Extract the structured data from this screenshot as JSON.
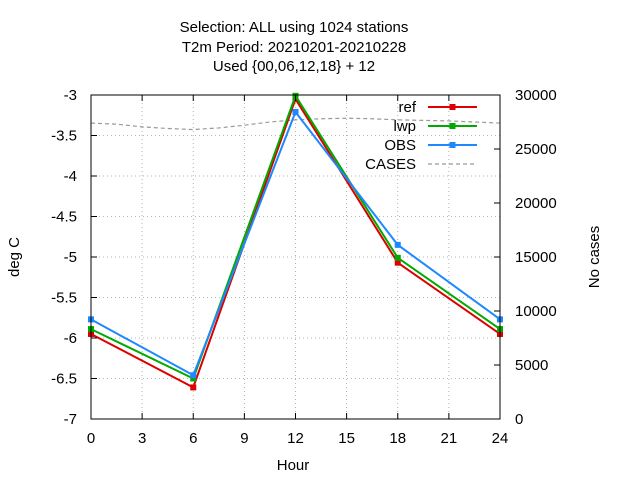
{
  "chart_data": {
    "type": "line",
    "title": [
      "Selection: ALL using  1024 stations",
      "T2m   Period: 20210201-20210228",
      "Used {00,06,12,18} + 12"
    ],
    "xlabel": "Hour",
    "ylabel": "deg C",
    "y2label": "No cases",
    "x": [
      0,
      6,
      12,
      18,
      24
    ],
    "xlim": [
      0,
      24
    ],
    "xticks": [
      "0",
      "3",
      "6",
      "9",
      "12",
      "15",
      "18",
      "21",
      "24"
    ],
    "xtick_values": [
      0,
      3,
      6,
      9,
      12,
      15,
      18,
      21,
      24
    ],
    "ylim": [
      -7,
      -3
    ],
    "yticks": [
      "-3",
      "-3.5",
      "-4",
      "-4.5",
      "-5",
      "-5.5",
      "-6",
      "-6.5",
      "-7"
    ],
    "ytick_values": [
      -3,
      -3.5,
      -4,
      -4.5,
      -5,
      -5.5,
      -6,
      -6.5,
      -7
    ],
    "y2lim": [
      0,
      30000
    ],
    "y2ticks": [
      "30000",
      "25000",
      "20000",
      "15000",
      "10000",
      "5000",
      "0"
    ],
    "y2tick_values": [
      30000,
      25000,
      20000,
      15000,
      10000,
      5000,
      0
    ],
    "grid": true,
    "legend_position": "top-right",
    "series": [
      {
        "name": "ref",
        "color": "#dd0000",
        "values": [
          -5.95,
          -6.61,
          -3.05,
          -5.07,
          -5.95
        ],
        "axis": "y1",
        "marker": "square"
      },
      {
        "name": "lwp",
        "color": "#00aa00",
        "values": [
          -5.89,
          -6.5,
          -3.01,
          -5.01,
          -5.89
        ],
        "axis": "y1",
        "marker": "square"
      },
      {
        "name": "OBS",
        "color": "#1e88ff",
        "values": [
          -5.77,
          -6.46,
          -3.21,
          -4.85,
          -5.77
        ],
        "axis": "y1",
        "marker": "square"
      }
    ],
    "cases": {
      "name": "CASES",
      "color": "#999999",
      "axis": "y2",
      "x": [
        0,
        1.5,
        3,
        4.5,
        6,
        7.5,
        9,
        10.5,
        12,
        13.5,
        15,
        16.5,
        18,
        19.5,
        21,
        22.5,
        24
      ],
      "values": [
        27400,
        27300,
        27050,
        26900,
        26800,
        26950,
        27200,
        27500,
        27700,
        27800,
        27850,
        27800,
        27700,
        27650,
        27600,
        27500,
        27400
      ]
    }
  }
}
